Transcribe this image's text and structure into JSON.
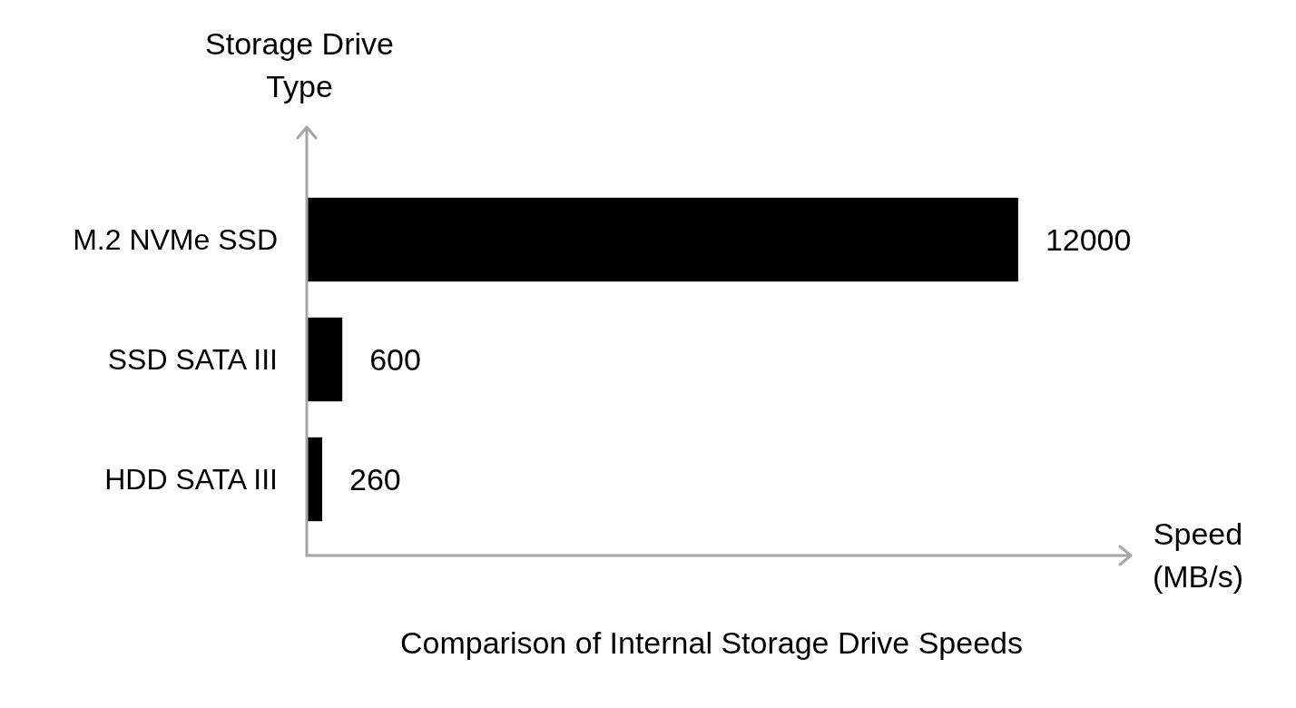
{
  "chart_data": {
    "type": "bar",
    "orientation": "horizontal",
    "title": "Comparison of Internal Storage Drive Speeds",
    "xlabel": "Speed (MB/s)",
    "ylabel": "Storage Drive Type",
    "categories": [
      "M.2 NVMe SSD",
      "SSD SATA III",
      "HDD SATA III"
    ],
    "values": [
      12000,
      600,
      260
    ],
    "color": "#000000",
    "xlim": [
      0,
      13900
    ],
    "data_labels": true
  }
}
